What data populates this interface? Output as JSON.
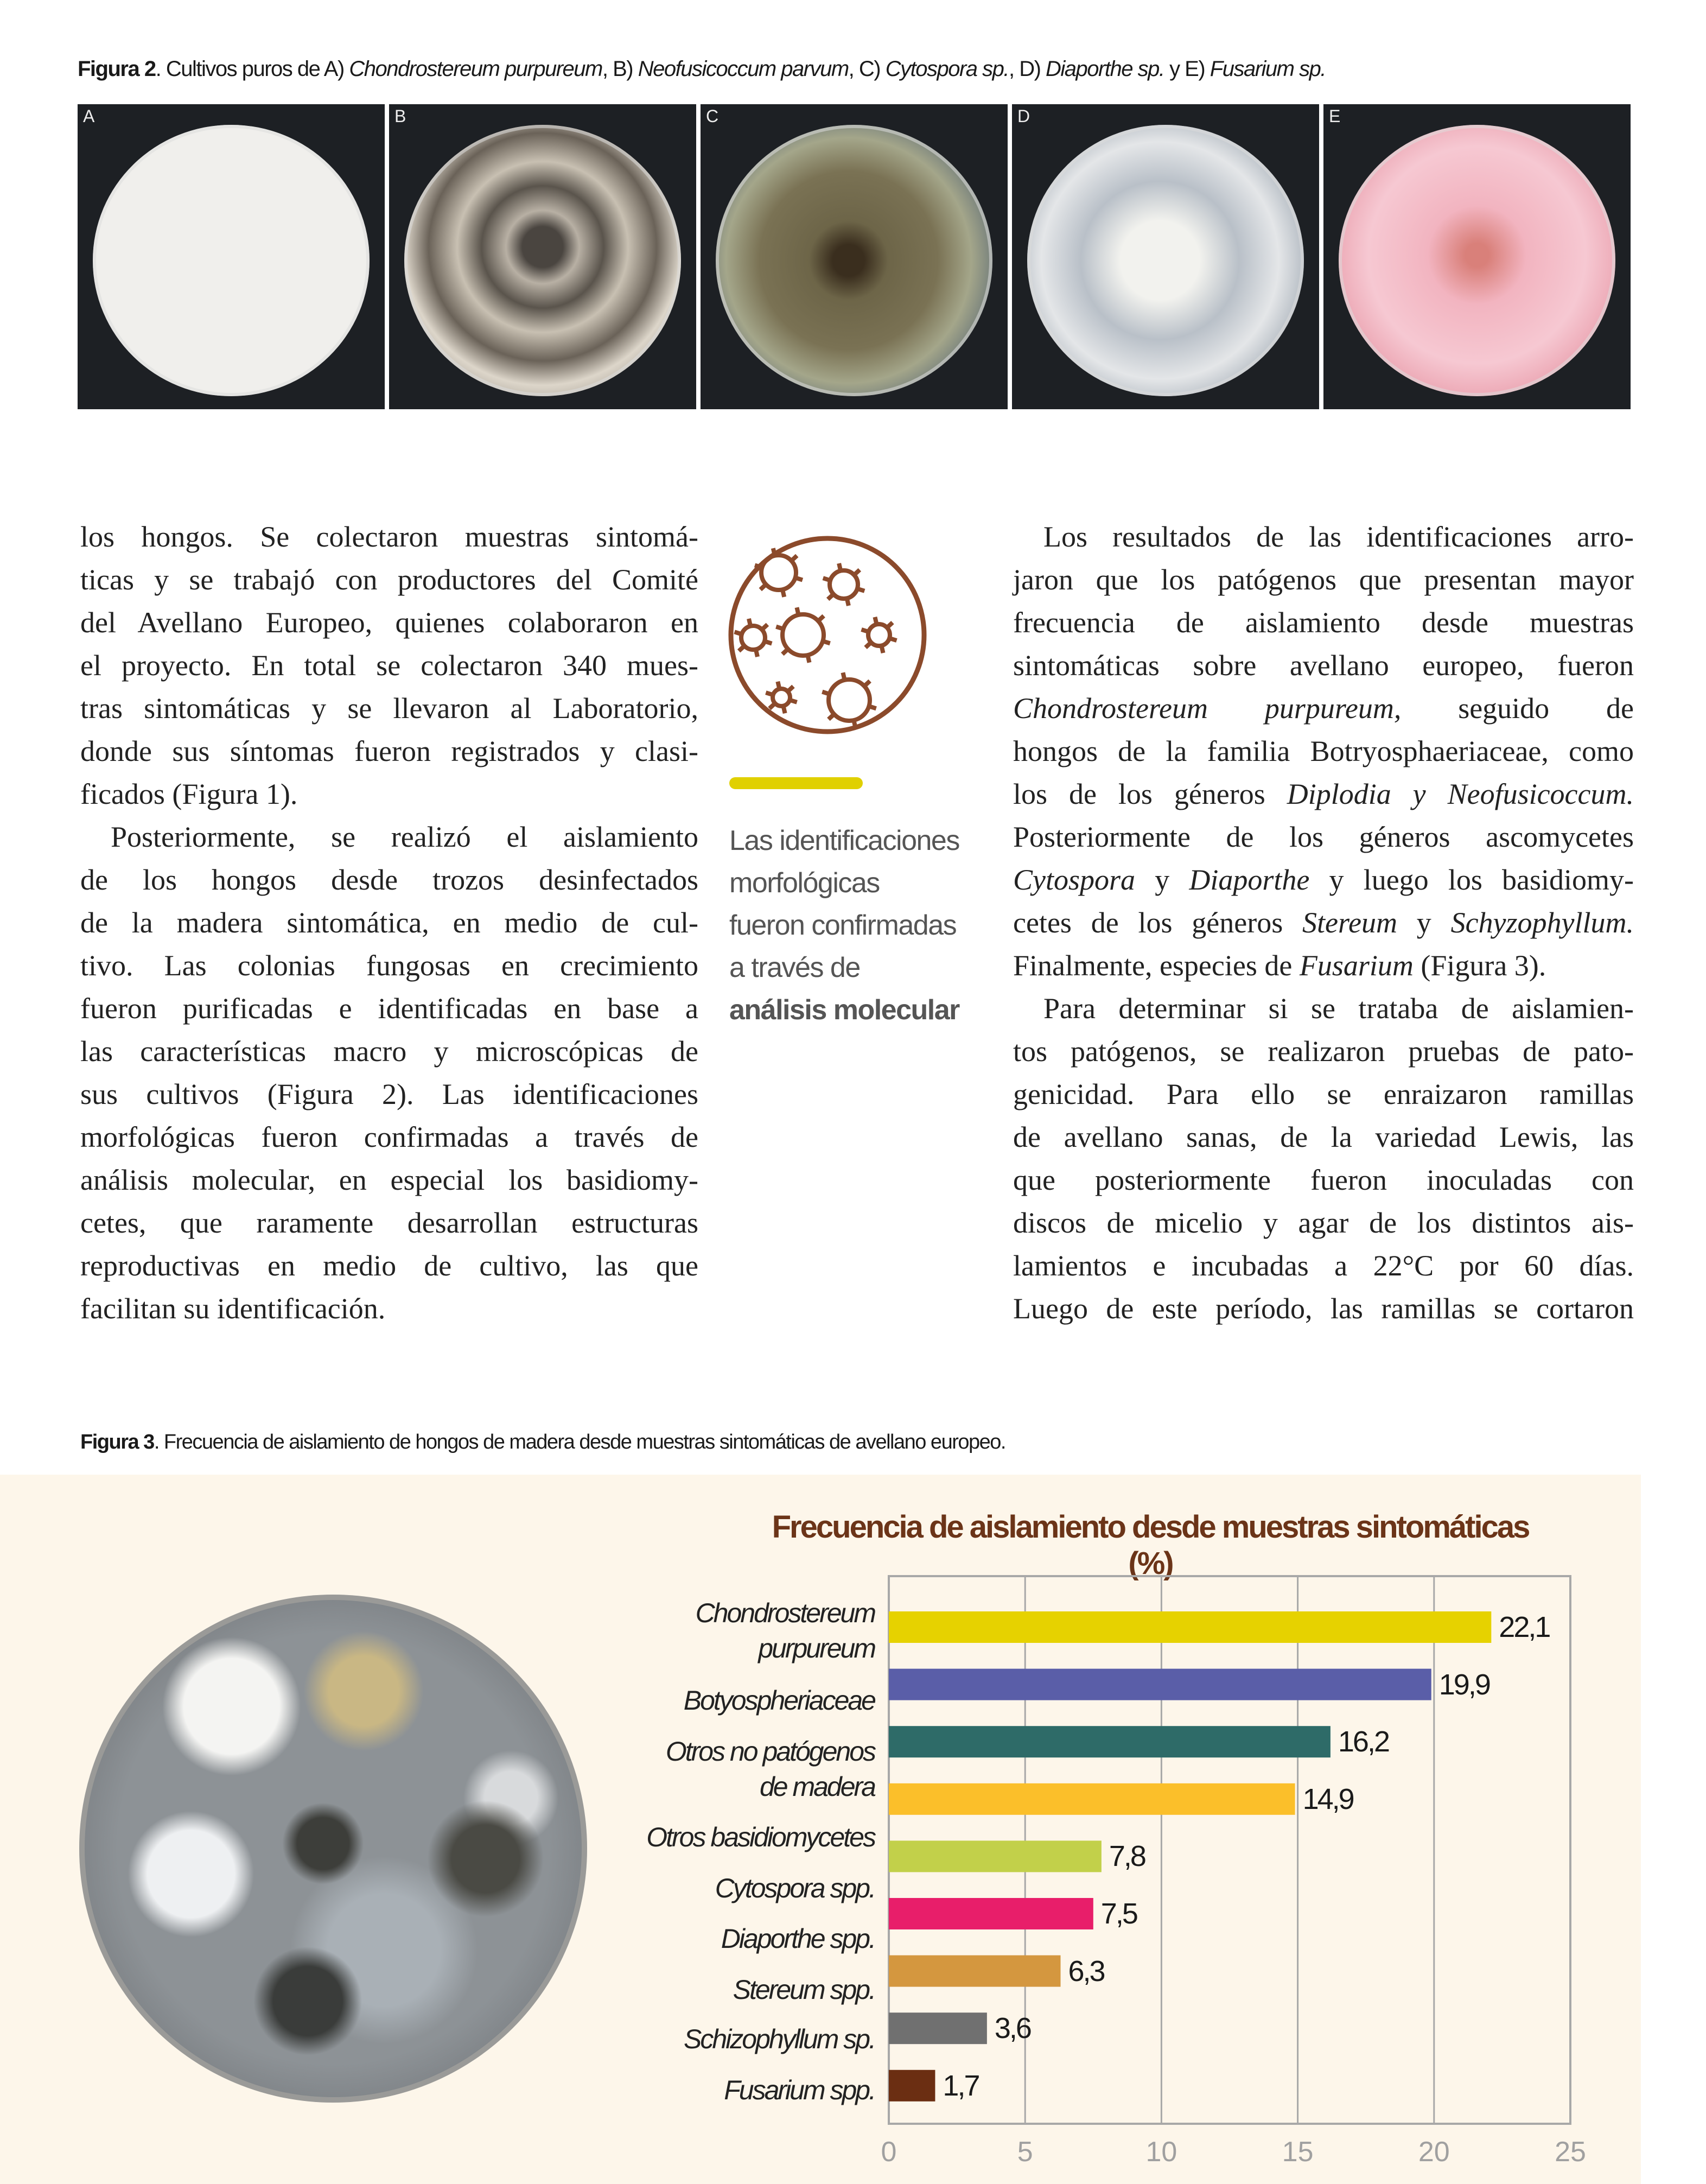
{
  "figure2": {
    "caption": [
      {
        "t": "Figura 2",
        "s": "b"
      },
      {
        "t": ". Cultivos puros de A) ",
        "s": ""
      },
      {
        "t": "Chondrostereum purpureum",
        "s": "i"
      },
      {
        "t": ", B) ",
        "s": ""
      },
      {
        "t": "Neofusicoccum parvum",
        "s": "i"
      },
      {
        "t": ", C) ",
        "s": ""
      },
      {
        "t": "Cytospora sp.",
        "s": "i"
      },
      {
        "t": ", D) ",
        "s": ""
      },
      {
        "t": "Diaporthe sp.",
        "s": "i"
      },
      {
        "t": " y E) ",
        "s": ""
      },
      {
        "t": "Fusarium sp.",
        "s": "i"
      }
    ],
    "panels": [
      {
        "label": "A",
        "tint": "#e6e4e0"
      },
      {
        "label": "B",
        "tint": "#8c8478"
      },
      {
        "label": "C",
        "tint": "#6e6650"
      },
      {
        "label": "D",
        "tint": "#c8ccd2"
      },
      {
        "label": "E",
        "tint": "#e8a8b6"
      }
    ]
  },
  "left_column": [
    {
      "seg": [
        {
          "t": "los hongos. Se colectaron muestras sintomá-"
        }
      ]
    },
    {
      "seg": [
        {
          "t": "ticas y se trabajó con productores del Comité"
        }
      ]
    },
    {
      "seg": [
        {
          "t": "del Avellano Europeo, quienes colaboraron en"
        }
      ]
    },
    {
      "seg": [
        {
          "t": "el proyecto. En total se colectaron 340 mues-"
        }
      ]
    },
    {
      "seg": [
        {
          "t": "tras sintomáticas y se llevaron al Laboratorio,"
        }
      ]
    },
    {
      "seg": [
        {
          "t": "donde sus síntomas fueron registrados y clasi-"
        }
      ]
    },
    {
      "seg": [
        {
          "t": "ficados (Figura 1)."
        }
      ],
      "last": true
    },
    {
      "seg": [
        {
          "t": "Posteriormente, se realizó el aislamiento"
        }
      ],
      "indent": true
    },
    {
      "seg": [
        {
          "t": "de los hongos desde trozos desinfectados"
        }
      ]
    },
    {
      "seg": [
        {
          "t": "de la madera sintomática, en medio de cul-"
        }
      ]
    },
    {
      "seg": [
        {
          "t": "tivo. Las colonias fungosas en crecimiento"
        }
      ]
    },
    {
      "seg": [
        {
          "t": "fueron purificadas e identificadas en base a"
        }
      ]
    },
    {
      "seg": [
        {
          "t": "las características macro y microscópicas de"
        }
      ]
    },
    {
      "seg": [
        {
          "t": "sus cultivos (Figura 2). Las identificaciones"
        }
      ]
    },
    {
      "seg": [
        {
          "t": "morfológicas fueron confirmadas a través de"
        }
      ]
    },
    {
      "seg": [
        {
          "t": "análisis molecular, en especial los basidiomy-"
        }
      ]
    },
    {
      "seg": [
        {
          "t": "cetes, que raramente desarrollan estructuras"
        }
      ]
    },
    {
      "seg": [
        {
          "t": "reproductivas en medio de cultivo, las que"
        }
      ]
    },
    {
      "seg": [
        {
          "t": "facilitan su identificación."
        }
      ],
      "last": true
    }
  ],
  "pull_quote": {
    "lines": [
      "Las identificaciones",
      "morfológicas",
      "fueron confirmadas",
      "a través de"
    ],
    "bold_line": "análisis molecular",
    "accent_color": "#e0d000",
    "icon": "fungal-spores-icon",
    "icon_color": "#8b4a2b"
  },
  "right_column": [
    {
      "seg": [
        {
          "t": "Los resultados de las identificaciones arro-"
        }
      ],
      "indent": true
    },
    {
      "seg": [
        {
          "t": "jaron que los patógenos que presentan mayor"
        }
      ]
    },
    {
      "seg": [
        {
          "t": "frecuencia de aislamiento desde muestras"
        }
      ]
    },
    {
      "seg": [
        {
          "t": "sintomáticas sobre avellano europeo, fueron"
        }
      ]
    },
    {
      "seg": [
        {
          "t": "Chondrostereum purpureum,",
          "i": true
        },
        {
          "t": " seguido de"
        }
      ]
    },
    {
      "seg": [
        {
          "t": "hongos de la familia Botryosphaeriaceae, como"
        }
      ]
    },
    {
      "seg": [
        {
          "t": "los de los géneros "
        },
        {
          "t": "Diplodia y Neofusicoccum.",
          "i": true
        }
      ]
    },
    {
      "seg": [
        {
          "t": "Posteriormente de los géneros ascomycetes"
        }
      ]
    },
    {
      "seg": [
        {
          "t": "Cytospora",
          "i": true
        },
        {
          "t": " y "
        },
        {
          "t": "Diaporthe",
          "i": true
        },
        {
          "t": " y luego los basidiomy-"
        }
      ]
    },
    {
      "seg": [
        {
          "t": "cetes de los géneros "
        },
        {
          "t": "Stereum",
          "i": true
        },
        {
          "t": " y "
        },
        {
          "t": "Schyzophyllum.",
          "i": true
        }
      ]
    },
    {
      "seg": [
        {
          "t": "Finalmente, especies de "
        },
        {
          "t": "Fusarium",
          "i": true
        },
        {
          "t": " (Figura 3)."
        }
      ],
      "last": true
    },
    {
      "seg": [
        {
          "t": "Para determinar si se trataba de aislamien-"
        }
      ],
      "indent": true
    },
    {
      "seg": [
        {
          "t": "tos patógenos, se realizaron pruebas de pato-"
        }
      ]
    },
    {
      "seg": [
        {
          "t": "genicidad. Para ello se enraizaron ramillas"
        }
      ]
    },
    {
      "seg": [
        {
          "t": "de avellano sanas, de la variedad Lewis, las"
        }
      ]
    },
    {
      "seg": [
        {
          "t": "que posteriormente fueron inoculadas con"
        }
      ]
    },
    {
      "seg": [
        {
          "t": "discos de micelio y agar de los distintos ais-"
        }
      ]
    },
    {
      "seg": [
        {
          "t": "lamientos e incubadas a 22°C por 60 días."
        }
      ]
    },
    {
      "seg": [
        {
          "t": "Luego de este período, las ramillas se cortaron"
        }
      ]
    }
  ],
  "figure3": {
    "caption_bold": "Figura 3",
    "caption_text": ". Frecuencia de aislamiento de hongos de madera desde muestras sintomáticas de avellano europeo.",
    "panel_color": "#fdf6ea"
  },
  "chart_data": {
    "type": "bar",
    "orientation": "horizontal",
    "title": "Frecuencia de aislamiento desde muestras sintomáticas (%)",
    "categories": [
      "Chondrostereum purpureum",
      "Botyospheriaceae",
      "Otros no patógenos de madera",
      "Otros basidiomycetes",
      "Cytospora spp.",
      "Diaporthe spp.",
      "Stereum spp.",
      "Schizophyllum sp.",
      "Fusarium spp."
    ],
    "category_lines": [
      [
        "Chondrostereum",
        "purpureum"
      ],
      [
        "Botyospheriaceae"
      ],
      [
        "Otros no patógenos",
        "de madera"
      ],
      [
        "Otros basidiomycetes"
      ],
      [
        "Cytospora spp."
      ],
      [
        "Diaporthe spp."
      ],
      [
        "Stereum spp."
      ],
      [
        "Schizophyllum sp."
      ],
      [
        "Fusarium spp."
      ]
    ],
    "values": [
      22.1,
      19.9,
      16.2,
      14.9,
      7.8,
      7.5,
      6.3,
      3.6,
      1.7
    ],
    "value_labels": [
      "22,1",
      "19,9",
      "16,2",
      "14,9",
      "7,8",
      "7,5",
      "6,3",
      "3,6",
      "1,7"
    ],
    "colors": [
      "#e6d200",
      "#5a5ea8",
      "#2e6b68",
      "#fbbf2a",
      "#c2d04a",
      "#e81e6a",
      "#d4973f",
      "#707070",
      "#6b2e12"
    ],
    "xlim": [
      0,
      25
    ],
    "xticks": [
      "0",
      "5",
      "10",
      "15",
      "20",
      "25"
    ],
    "xtick_values": [
      0,
      5,
      10,
      15,
      20,
      25
    ],
    "grid": true,
    "xlabel": "",
    "ylabel": ""
  }
}
